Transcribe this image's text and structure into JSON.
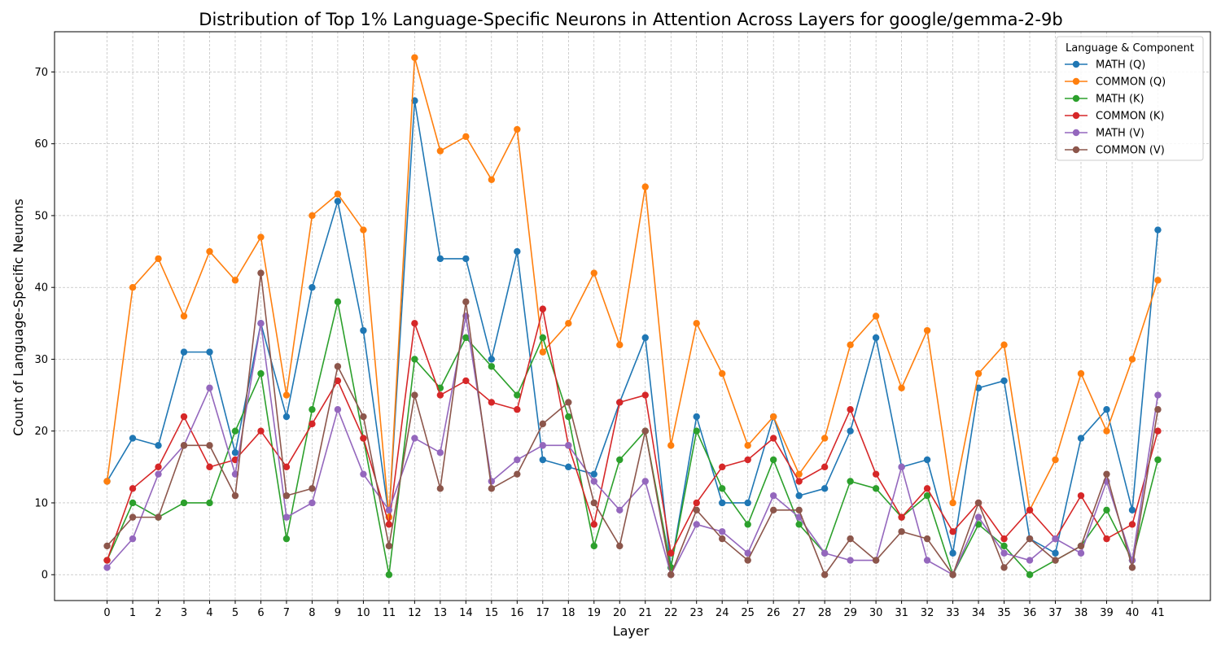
{
  "chart_data": {
    "type": "line",
    "title": "Distribution of Top 1% Language-Specific Neurons in Attention Across Layers for google/gemma-2-9b",
    "xlabel": "Layer",
    "ylabel": "Count of Language-Specific Neurons",
    "x": [
      0,
      1,
      2,
      3,
      4,
      5,
      6,
      7,
      8,
      9,
      10,
      11,
      12,
      13,
      14,
      15,
      16,
      17,
      18,
      19,
      20,
      21,
      22,
      23,
      24,
      25,
      26,
      27,
      28,
      29,
      30,
      31,
      32,
      33,
      34,
      35,
      36,
      37,
      38,
      39,
      40,
      41
    ],
    "xlim": [
      -2.05,
      43.05
    ],
    "ylim": [
      -3.6,
      75.6
    ],
    "yticks": [
      0,
      10,
      20,
      30,
      40,
      50,
      60,
      70
    ],
    "grid": true,
    "legend": {
      "title": "Language & Component",
      "placement": "top-right"
    },
    "series": [
      {
        "name": "MATH (Q)",
        "color": "#1f77b4",
        "values": [
          13,
          19,
          18,
          31,
          31,
          17,
          35,
          22,
          40,
          52,
          34,
          8,
          66,
          44,
          44,
          30,
          45,
          16,
          15,
          14,
          24,
          33,
          1,
          22,
          10,
          10,
          22,
          11,
          12,
          20,
          33,
          15,
          16,
          3,
          26,
          27,
          5,
          3,
          19,
          23,
          9,
          48
        ]
      },
      {
        "name": "COMMON (Q)",
        "color": "#ff7f0e",
        "values": [
          13,
          40,
          44,
          36,
          45,
          41,
          47,
          25,
          50,
          53,
          48,
          8,
          72,
          59,
          61,
          55,
          62,
          31,
          35,
          42,
          32,
          54,
          18,
          35,
          28,
          18,
          22,
          14,
          19,
          32,
          36,
          26,
          34,
          10,
          28,
          32,
          9,
          16,
          28,
          20,
          30,
          41
        ]
      },
      {
        "name": "MATH (K)",
        "color": "#2ca02c",
        "values": [
          2,
          10,
          8,
          10,
          10,
          20,
          28,
          5,
          23,
          38,
          19,
          0,
          30,
          26,
          33,
          29,
          25,
          33,
          22,
          4,
          16,
          20,
          1,
          20,
          12,
          7,
          16,
          7,
          3,
          13,
          12,
          8,
          11,
          0,
          7,
          4,
          0,
          2,
          4,
          9,
          2,
          16
        ]
      },
      {
        "name": "COMMON (K)",
        "color": "#d62728",
        "values": [
          2,
          12,
          15,
          22,
          15,
          16,
          20,
          15,
          21,
          27,
          19,
          7,
          35,
          25,
          27,
          24,
          23,
          37,
          18,
          7,
          24,
          25,
          3,
          10,
          15,
          16,
          19,
          13,
          15,
          23,
          14,
          8,
          12,
          6,
          10,
          5,
          9,
          5,
          11,
          5,
          7,
          20
        ]
      },
      {
        "name": "MATH (V)",
        "color": "#9467bd",
        "values": [
          1,
          5,
          14,
          18,
          26,
          14,
          35,
          8,
          10,
          23,
          14,
          9,
          19,
          17,
          36,
          13,
          16,
          18,
          18,
          13,
          9,
          13,
          0,
          7,
          6,
          3,
          11,
          8,
          3,
          2,
          2,
          15,
          2,
          0,
          8,
          3,
          2,
          5,
          3,
          13,
          2,
          25
        ]
      },
      {
        "name": "COMMON (V)",
        "color": "#8c564b",
        "values": [
          4,
          8,
          8,
          18,
          18,
          11,
          42,
          11,
          12,
          29,
          22,
          4,
          25,
          12,
          38,
          12,
          14,
          21,
          24,
          10,
          4,
          20,
          0,
          9,
          5,
          2,
          9,
          9,
          0,
          5,
          2,
          6,
          5,
          0,
          10,
          1,
          5,
          2,
          4,
          14,
          1,
          23
        ]
      }
    ]
  }
}
